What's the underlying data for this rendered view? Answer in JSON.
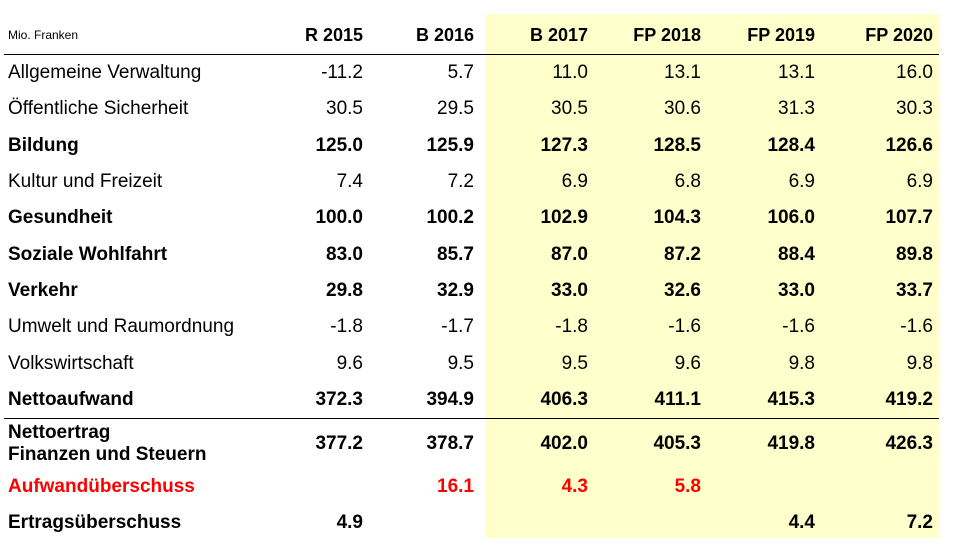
{
  "unit_label": "Mio. Franken",
  "columns": [
    "R 2015",
    "B 2016",
    "B 2017",
    "FP 2018",
    "FP 2019",
    "FP 2020"
  ],
  "rows": [
    {
      "label": "Allgemeine Verwaltung",
      "values": [
        "-11.2",
        "5.7",
        "11.0",
        "13.1",
        "13.1",
        "16.0"
      ]
    },
    {
      "label": "Öffentliche Sicherheit",
      "values": [
        "30.5",
        "29.5",
        "30.5",
        "30.6",
        "31.3",
        "30.3"
      ]
    },
    {
      "label": "Bildung",
      "values": [
        "125.0",
        "125.9",
        "127.3",
        "128.5",
        "128.4",
        "126.6"
      ]
    },
    {
      "label": "Kultur und Freizeit",
      "values": [
        "7.4",
        "7.2",
        "6.9",
        "6.8",
        "6.9",
        "6.9"
      ]
    },
    {
      "label": "Gesundheit",
      "values": [
        "100.0",
        "100.2",
        "102.9",
        "104.3",
        "106.0",
        "107.7"
      ]
    },
    {
      "label": "Soziale Wohlfahrt",
      "values": [
        "83.0",
        "85.7",
        "87.0",
        "87.2",
        "88.4",
        "89.8"
      ]
    },
    {
      "label": "Verkehr",
      "values": [
        "29.8",
        "32.9",
        "33.0",
        "32.6",
        "33.0",
        "33.7"
      ]
    },
    {
      "label": "Umwelt und Raumordnung",
      "values": [
        "-1.8",
        "-1.7",
        "-1.8",
        "-1.6",
        "-1.6",
        "-1.6"
      ]
    },
    {
      "label": "Volkswirtschaft",
      "values": [
        "9.6",
        "9.5",
        "9.5",
        "9.6",
        "9.8",
        "9.8"
      ]
    },
    {
      "label": "Nettoaufwand",
      "values": [
        "372.3",
        "394.9",
        "406.3",
        "411.1",
        "415.3",
        "419.2"
      ]
    },
    {
      "label": "Nettoertrag\nFinanzen und Steuern",
      "values": [
        "377.2",
        "378.7",
        "402.0",
        "405.3",
        "419.8",
        "426.3"
      ]
    },
    {
      "label": "Aufwandüberschuss",
      "values": [
        "",
        "16.1",
        "4.3",
        "5.8",
        "",
        ""
      ]
    },
    {
      "label": "Ertragsüberschuss",
      "values": [
        "4.9",
        "",
        "",
        "",
        "4.4",
        "7.2"
      ]
    }
  ],
  "colors": {
    "highlight": "#ffffcc",
    "deficit": "#ff0000"
  }
}
